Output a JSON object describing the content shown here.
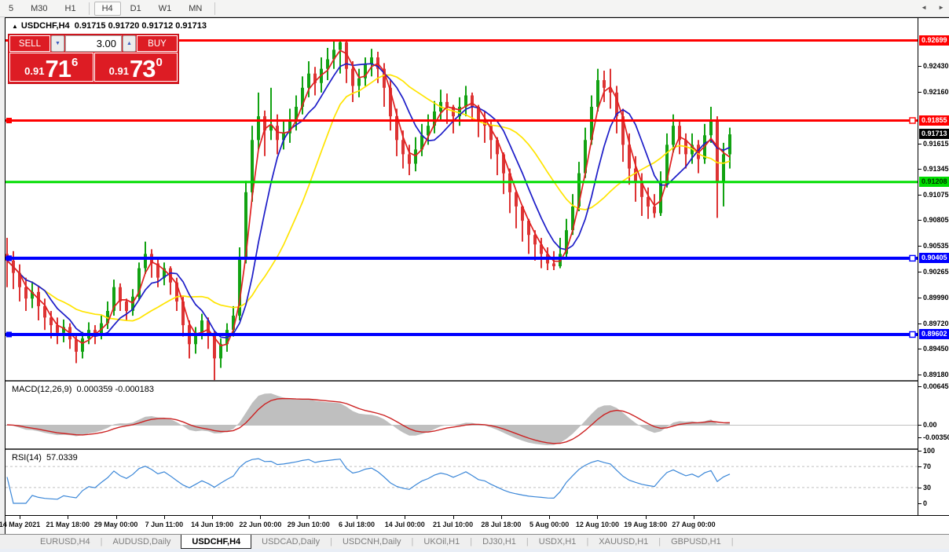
{
  "toolbar": {
    "timeframes": [
      {
        "label": "5",
        "active": false
      },
      {
        "label": "M30",
        "active": false
      },
      {
        "label": "H1",
        "active": false,
        "sep_after": true
      },
      {
        "label": "H4",
        "active": true
      },
      {
        "label": "D1",
        "active": false
      },
      {
        "label": "W1",
        "active": false
      },
      {
        "label": "MN",
        "active": false,
        "sep_after": true
      }
    ]
  },
  "header": {
    "arrow_icon": "▲",
    "symbol": "USDCHF,H4",
    "ohlc": "0.91715 0.91720 0.91712 0.91713"
  },
  "order_panel": {
    "sell_label": "SELL",
    "buy_label": "BUY",
    "volume": "3.00",
    "down_icon": "▼",
    "up_icon": "▲",
    "sell": {
      "prefix": "0.91",
      "main": "71",
      "sup": "6"
    },
    "buy": {
      "prefix": "0.91",
      "main": "73",
      "sup": "0"
    }
  },
  "macd": {
    "title": "MACD(12,26,9)",
    "values": "0.000359 -0.000183",
    "axis": [
      "0.006451",
      "0.00",
      "-0.003507"
    ]
  },
  "rsi": {
    "title": "RSI(14)",
    "value": "57.0339",
    "axis": [
      "100",
      "70",
      "30",
      "0"
    ],
    "levels": [
      70,
      30
    ]
  },
  "tabs": {
    "items": [
      "EURUSD,H4",
      "AUDUSD,Daily",
      "USDCHF,H4",
      "USDCAD,Daily",
      "USDCNH,Daily",
      "UKOil,H1",
      "DJ30,H1",
      "USDX,H1",
      "XAUUSD,H1",
      "GBPUSD,H1"
    ],
    "active_index": 2,
    "scroll_left_icon": "◄",
    "scroll_right_icon": "►"
  },
  "chart_data": {
    "type": "candlestick",
    "symbol": "USDCHF",
    "timeframe": "H4",
    "current_price": {
      "label": "0.91713",
      "value": 0.91713
    },
    "y_axis_ticks": [
      "0.92430",
      "0.92160",
      "0.91615",
      "0.91345",
      "0.91075",
      "0.90805",
      "0.90535",
      "0.90265",
      "0.89990",
      "0.89720",
      "0.89450",
      "0.89180"
    ],
    "x_labels": [
      "14 May 2021",
      "21 May 18:00",
      "29 May 00:00",
      "7 Jun 11:00",
      "14 Jun 19:00",
      "22 Jun 00:00",
      "29 Jun 10:00",
      "6 Jul 18:00",
      "14 Jul 00:00",
      "21 Jul 10:00",
      "28 Jul 18:00",
      "5 Aug 00:00",
      "12 Aug 10:00",
      "19 Aug 18:00",
      "27 Aug 00:00"
    ],
    "hlines": [
      {
        "price": 0.92699,
        "label": "0.92699",
        "color": "#ff0000",
        "text_color": "#ffffff",
        "weight": 3,
        "handles": false
      },
      {
        "price": 0.91855,
        "label": "0.91855",
        "color": "#ff0000",
        "text_color": "#ffffff",
        "weight": 3,
        "handles": true
      },
      {
        "price": 0.91208,
        "label": "0.91208",
        "color": "#00dd00",
        "text_color": "#003300",
        "weight": 3,
        "handles": false
      },
      {
        "price": 0.90405,
        "label": "0.90405",
        "color": "#0000ff",
        "text_color": "#ffffff",
        "weight": 4,
        "handles": true
      },
      {
        "price": 0.89602,
        "label": "0.89602",
        "color": "#0000ff",
        "text_color": "#ffffff",
        "weight": 4,
        "handles": true
      }
    ],
    "colors": {
      "up": "#12a212",
      "down": "#dd3333",
      "ma_fast": "#e02020",
      "ma_mid": "#1c1cc8",
      "ma_slow": "#ffe400",
      "macd_hist": "#bfbfbf",
      "macd_signal": "#cc2222",
      "rsi_line": "#3b87d8",
      "level_dash": "#c0c0c0",
      "current_bg": "#000000",
      "current_text": "#ffffff"
    },
    "ma_periods": {
      "fast": 3,
      "mid": 7,
      "slow": 16
    },
    "open_seed": 0.9045,
    "candles": [
      [
        0.9062,
        0.901,
        0.9038
      ],
      [
        0.9048,
        0.9008,
        0.9025
      ],
      [
        0.9034,
        0.8995,
        0.901
      ],
      [
        0.902,
        0.8985,
        0.8998
      ],
      [
        0.9016,
        0.8988,
        0.9005
      ],
      [
        0.9011,
        0.8975,
        0.899
      ],
      [
        0.8998,
        0.8965,
        0.8978
      ],
      [
        0.8985,
        0.8956,
        0.897
      ],
      [
        0.8978,
        0.895,
        0.8962
      ],
      [
        0.8976,
        0.8952,
        0.8968
      ],
      [
        0.8972,
        0.8945,
        0.8955
      ],
      [
        0.896,
        0.893,
        0.8942
      ],
      [
        0.8963,
        0.8935,
        0.8956
      ],
      [
        0.8973,
        0.895,
        0.8965
      ],
      [
        0.897,
        0.895,
        0.896
      ],
      [
        0.898,
        0.8955,
        0.8972
      ],
      [
        0.8995,
        0.8966,
        0.8985
      ],
      [
        0.9018,
        0.898,
        0.901
      ],
      [
        0.9014,
        0.8985,
        0.8995
      ],
      [
        0.8998,
        0.8975,
        0.8985
      ],
      [
        0.9008,
        0.898,
        0.9
      ],
      [
        0.9036,
        0.8996,
        0.903
      ],
      [
        0.9058,
        0.9024,
        0.9045
      ],
      [
        0.905,
        0.902,
        0.9035
      ],
      [
        0.904,
        0.901,
        0.902
      ],
      [
        0.9036,
        0.9012,
        0.903
      ],
      [
        0.9032,
        0.9002,
        0.9015
      ],
      [
        0.902,
        0.8985,
        0.8995
      ],
      [
        0.9,
        0.8958,
        0.897
      ],
      [
        0.8975,
        0.8935,
        0.895
      ],
      [
        0.8968,
        0.894,
        0.8962
      ],
      [
        0.8982,
        0.8955,
        0.8975
      ],
      [
        0.8978,
        0.8945,
        0.896
      ],
      [
        0.8964,
        0.8912,
        0.8935
      ],
      [
        0.8956,
        0.8925,
        0.895
      ],
      [
        0.8972,
        0.8942,
        0.8965
      ],
      [
        0.899,
        0.8958,
        0.898
      ],
      [
        0.9052,
        0.8975,
        0.904
      ],
      [
        0.9122,
        0.9035,
        0.911
      ],
      [
        0.918,
        0.91,
        0.9165
      ],
      [
        0.9215,
        0.9155,
        0.919
      ],
      [
        0.9196,
        0.9148,
        0.9175
      ],
      [
        0.922,
        0.9165,
        0.918
      ],
      [
        0.9192,
        0.915,
        0.9165
      ],
      [
        0.9185,
        0.9155,
        0.9172
      ],
      [
        0.9198,
        0.9162,
        0.9185
      ],
      [
        0.9212,
        0.9175,
        0.92
      ],
      [
        0.9232,
        0.9192,
        0.922
      ],
      [
        0.9248,
        0.921,
        0.9235
      ],
      [
        0.9242,
        0.9212,
        0.9225
      ],
      [
        0.9252,
        0.9215,
        0.924
      ],
      [
        0.9262,
        0.9228,
        0.925
      ],
      [
        0.927,
        0.924,
        0.926
      ],
      [
        0.9271,
        0.9235,
        0.9268
      ],
      [
        0.9269,
        0.9225,
        0.924
      ],
      [
        0.9248,
        0.9205,
        0.9222
      ],
      [
        0.924,
        0.921,
        0.923
      ],
      [
        0.9252,
        0.9222,
        0.9245
      ],
      [
        0.9261,
        0.9232,
        0.9252
      ],
      [
        0.9258,
        0.9225,
        0.924
      ],
      [
        0.9246,
        0.92,
        0.922
      ],
      [
        0.9228,
        0.9175,
        0.919
      ],
      [
        0.9198,
        0.9148,
        0.9165
      ],
      [
        0.9175,
        0.9135,
        0.915
      ],
      [
        0.916,
        0.9128,
        0.914
      ],
      [
        0.9168,
        0.9132,
        0.9155
      ],
      [
        0.9182,
        0.9148,
        0.917
      ],
      [
        0.9192,
        0.916,
        0.918
      ],
      [
        0.9206,
        0.9172,
        0.9195
      ],
      [
        0.9218,
        0.9185,
        0.9205
      ],
      [
        0.9214,
        0.9182,
        0.92
      ],
      [
        0.9202,
        0.9172,
        0.919
      ],
      [
        0.921,
        0.918,
        0.92
      ],
      [
        0.9222,
        0.919,
        0.9212
      ],
      [
        0.9215,
        0.9185,
        0.92
      ],
      [
        0.9202,
        0.9168,
        0.9185
      ],
      [
        0.9195,
        0.9162,
        0.918
      ],
      [
        0.9185,
        0.9145,
        0.9165
      ],
      [
        0.9168,
        0.9128,
        0.915
      ],
      [
        0.9152,
        0.9108,
        0.913
      ],
      [
        0.9135,
        0.9088,
        0.911
      ],
      [
        0.9112,
        0.9072,
        0.9095
      ],
      [
        0.9096,
        0.9058,
        0.908
      ],
      [
        0.9082,
        0.9045,
        0.9065
      ],
      [
        0.907,
        0.9038,
        0.9055
      ],
      [
        0.9062,
        0.903,
        0.9045
      ],
      [
        0.9052,
        0.9028,
        0.9035
      ],
      [
        0.9048,
        0.9028,
        0.9032
      ],
      [
        0.9062,
        0.903,
        0.9045
      ],
      [
        0.9082,
        0.9042,
        0.907
      ],
      [
        0.9108,
        0.9065,
        0.9095
      ],
      [
        0.9142,
        0.909,
        0.913
      ],
      [
        0.9178,
        0.9125,
        0.9165
      ],
      [
        0.9212,
        0.916,
        0.92
      ],
      [
        0.924,
        0.9195,
        0.9228
      ],
      [
        0.9238,
        0.9205,
        0.922
      ],
      [
        0.924,
        0.9198,
        0.9215
      ],
      [
        0.9222,
        0.9172,
        0.919
      ],
      [
        0.9198,
        0.9142,
        0.916
      ],
      [
        0.9172,
        0.9118,
        0.9135
      ],
      [
        0.9148,
        0.91,
        0.912
      ],
      [
        0.913,
        0.9085,
        0.9105
      ],
      [
        0.9115,
        0.9082,
        0.9095
      ],
      [
        0.9108,
        0.9083,
        0.9088
      ],
      [
        0.9132,
        0.9085,
        0.912
      ],
      [
        0.9172,
        0.9115,
        0.916
      ],
      [
        0.9192,
        0.9152,
        0.918
      ],
      [
        0.9186,
        0.915,
        0.9165
      ],
      [
        0.9172,
        0.9135,
        0.915
      ],
      [
        0.9172,
        0.914,
        0.916
      ],
      [
        0.9165,
        0.913,
        0.9145
      ],
      [
        0.9182,
        0.914,
        0.917
      ],
      [
        0.92,
        0.9162,
        0.9185
      ],
      [
        0.919,
        0.9083,
        0.912
      ],
      [
        0.9162,
        0.9095,
        0.915
      ],
      [
        0.9178,
        0.9135,
        0.9171
      ]
    ]
  }
}
